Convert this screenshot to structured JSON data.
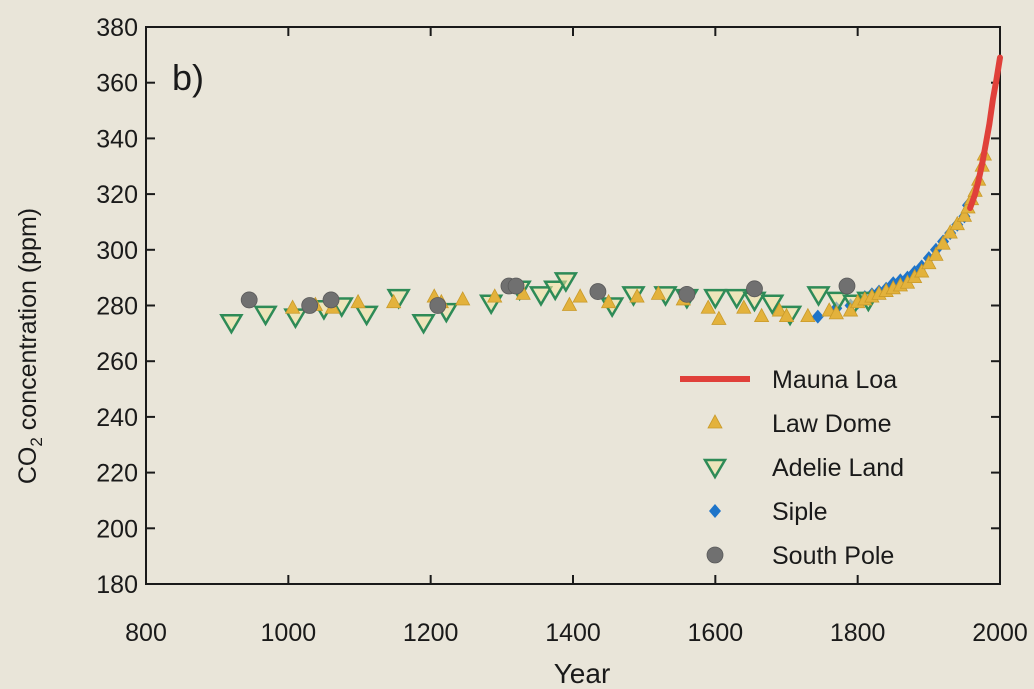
{
  "chart_data": {
    "type": "scatter",
    "panel_label": "b)",
    "xlabel": "Year",
    "ylabel_prefix": "CO",
    "ylabel_sub": "2",
    "ylabel_suffix": " concentration (ppm)",
    "xlim": [
      800,
      2000
    ],
    "ylim": [
      180,
      380
    ],
    "x_ticks": [
      "800",
      "1000",
      "1200",
      "1400",
      "1600",
      "1800",
      "2000"
    ],
    "y_ticks": [
      "180",
      "200",
      "220",
      "240",
      "260",
      "280",
      "300",
      "320",
      "340",
      "360",
      "380"
    ],
    "grid": false,
    "legend_position": "lower-right",
    "series": [
      {
        "name": "Mauna Loa",
        "kind": "line",
        "color": "#e0403a",
        "points": [
          [
            1958,
            315
          ],
          [
            1965,
            320
          ],
          [
            1970,
            325
          ],
          [
            1975,
            331
          ],
          [
            1980,
            338
          ],
          [
            1985,
            345
          ],
          [
            1990,
            354
          ],
          [
            1995,
            361
          ],
          [
            2000,
            369
          ]
        ]
      },
      {
        "name": "Law Dome",
        "kind": "triangle",
        "color": "#e3b23c",
        "points": [
          [
            1006,
            279
          ],
          [
            1038,
            280
          ],
          [
            1062,
            279
          ],
          [
            1098,
            281
          ],
          [
            1148,
            281
          ],
          [
            1205,
            283
          ],
          [
            1215,
            281
          ],
          [
            1245,
            282
          ],
          [
            1290,
            283
          ],
          [
            1330,
            284
          ],
          [
            1395,
            280
          ],
          [
            1410,
            283
          ],
          [
            1450,
            281
          ],
          [
            1490,
            283
          ],
          [
            1520,
            284
          ],
          [
            1555,
            282
          ],
          [
            1590,
            279
          ],
          [
            1605,
            275
          ],
          [
            1640,
            279
          ],
          [
            1665,
            276
          ],
          [
            1690,
            278
          ],
          [
            1700,
            276
          ],
          [
            1730,
            276
          ],
          [
            1760,
            278
          ],
          [
            1770,
            277
          ],
          [
            1790,
            278
          ],
          [
            1800,
            281
          ],
          [
            1810,
            282
          ],
          [
            1820,
            283
          ],
          [
            1830,
            284
          ],
          [
            1840,
            285
          ],
          [
            1850,
            286
          ],
          [
            1860,
            287
          ],
          [
            1870,
            288
          ],
          [
            1880,
            290
          ],
          [
            1890,
            292
          ],
          [
            1900,
            295
          ],
          [
            1910,
            298
          ],
          [
            1920,
            302
          ],
          [
            1930,
            306
          ],
          [
            1940,
            309
          ],
          [
            1950,
            312
          ],
          [
            1955,
            315
          ],
          [
            1960,
            318
          ],
          [
            1965,
            321
          ],
          [
            1970,
            325
          ],
          [
            1975,
            330
          ],
          [
            1978,
            334
          ]
        ]
      },
      {
        "name": "Adelie Land",
        "kind": "inverted-triangle",
        "color": "#2e8b57",
        "points": [
          [
            920,
            274
          ],
          [
            968,
            277
          ],
          [
            1010,
            276
          ],
          [
            1050,
            279
          ],
          [
            1075,
            280
          ],
          [
            1110,
            277
          ],
          [
            1155,
            283
          ],
          [
            1190,
            274
          ],
          [
            1222,
            278
          ],
          [
            1285,
            281
          ],
          [
            1325,
            286
          ],
          [
            1355,
            284
          ],
          [
            1375,
            286
          ],
          [
            1390,
            289
          ],
          [
            1455,
            280
          ],
          [
            1485,
            284
          ],
          [
            1530,
            284
          ],
          [
            1560,
            283
          ],
          [
            1600,
            283
          ],
          [
            1630,
            283
          ],
          [
            1655,
            282
          ],
          [
            1680,
            281
          ],
          [
            1705,
            277
          ],
          [
            1745,
            284
          ],
          [
            1772,
            282
          ],
          [
            1795,
            281
          ],
          [
            1815,
            282
          ]
        ]
      },
      {
        "name": "Siple",
        "kind": "diamond",
        "color": "#1e74c9",
        "points": [
          [
            1744,
            276
          ],
          [
            1770,
            279
          ],
          [
            1790,
            280
          ],
          [
            1800,
            281
          ],
          [
            1810,
            283
          ],
          [
            1820,
            284
          ],
          [
            1830,
            285
          ],
          [
            1840,
            286
          ],
          [
            1850,
            288
          ],
          [
            1860,
            289
          ],
          [
            1870,
            290
          ],
          [
            1880,
            292
          ],
          [
            1890,
            294
          ],
          [
            1900,
            297
          ],
          [
            1910,
            300
          ],
          [
            1920,
            303
          ],
          [
            1930,
            306
          ],
          [
            1940,
            309
          ],
          [
            1950,
            312
          ],
          [
            1955,
            316
          ]
        ]
      },
      {
        "name": "South Pole",
        "kind": "circle",
        "color": "#707070",
        "points": [
          [
            945,
            282
          ],
          [
            1030,
            280
          ],
          [
            1060,
            282
          ],
          [
            1210,
            280
          ],
          [
            1310,
            287
          ],
          [
            1320,
            287
          ],
          [
            1435,
            285
          ],
          [
            1560,
            284
          ],
          [
            1655,
            286
          ],
          [
            1785,
            287
          ]
        ]
      }
    ]
  },
  "colors": {
    "background": "#e9e5d9",
    "axis": "#1a1a1a"
  }
}
